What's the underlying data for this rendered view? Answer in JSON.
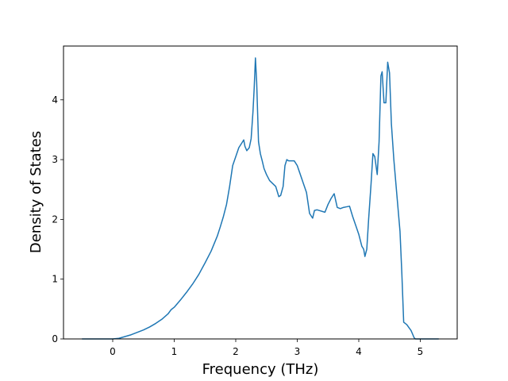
{
  "chart_data": {
    "type": "line",
    "xlabel": "Frequency (THz)",
    "ylabel": "Density of States",
    "xlim": [
      -0.8,
      5.6
    ],
    "ylim": [
      0,
      4.9
    ],
    "xticks": [
      0,
      1,
      2,
      3,
      4,
      5
    ],
    "yticks": [
      0,
      1,
      2,
      3,
      4
    ],
    "grid": false,
    "colors": {
      "line": "#1f77b4"
    },
    "series": [
      {
        "points": [
          [
            -0.5,
            0
          ],
          [
            0.0,
            0
          ],
          [
            0.1,
            0.01
          ],
          [
            0.2,
            0.04
          ],
          [
            0.3,
            0.07
          ],
          [
            0.4,
            0.11
          ],
          [
            0.5,
            0.15
          ],
          [
            0.6,
            0.2
          ],
          [
            0.7,
            0.26
          ],
          [
            0.8,
            0.33
          ],
          [
            0.9,
            0.42
          ],
          [
            0.95,
            0.49
          ],
          [
            1.0,
            0.53
          ],
          [
            1.1,
            0.65
          ],
          [
            1.2,
            0.78
          ],
          [
            1.3,
            0.92
          ],
          [
            1.4,
            1.08
          ],
          [
            1.5,
            1.27
          ],
          [
            1.6,
            1.47
          ],
          [
            1.7,
            1.72
          ],
          [
            1.75,
            1.88
          ],
          [
            1.8,
            2.05
          ],
          [
            1.85,
            2.25
          ],
          [
            1.9,
            2.55
          ],
          [
            1.95,
            2.9
          ],
          [
            2.0,
            3.05
          ],
          [
            2.05,
            3.2
          ],
          [
            2.1,
            3.28
          ],
          [
            2.13,
            3.33
          ],
          [
            2.15,
            3.22
          ],
          [
            2.18,
            3.15
          ],
          [
            2.22,
            3.2
          ],
          [
            2.25,
            3.35
          ],
          [
            2.28,
            3.8
          ],
          [
            2.3,
            4.2
          ],
          [
            2.32,
            4.7
          ],
          [
            2.34,
            4.3
          ],
          [
            2.37,
            3.3
          ],
          [
            2.4,
            3.1
          ],
          [
            2.43,
            2.98
          ],
          [
            2.46,
            2.85
          ],
          [
            2.5,
            2.75
          ],
          [
            2.55,
            2.65
          ],
          [
            2.6,
            2.6
          ],
          [
            2.65,
            2.55
          ],
          [
            2.7,
            2.38
          ],
          [
            2.73,
            2.4
          ],
          [
            2.77,
            2.55
          ],
          [
            2.8,
            2.9
          ],
          [
            2.83,
            3.0
          ],
          [
            2.86,
            2.98
          ],
          [
            2.95,
            2.98
          ],
          [
            3.0,
            2.9
          ],
          [
            3.1,
            2.6
          ],
          [
            3.15,
            2.45
          ],
          [
            3.2,
            2.1
          ],
          [
            3.25,
            2.02
          ],
          [
            3.28,
            2.15
          ],
          [
            3.32,
            2.16
          ],
          [
            3.45,
            2.12
          ],
          [
            3.5,
            2.25
          ],
          [
            3.55,
            2.35
          ],
          [
            3.6,
            2.43
          ],
          [
            3.65,
            2.2
          ],
          [
            3.7,
            2.18
          ],
          [
            3.75,
            2.2
          ],
          [
            3.8,
            2.21
          ],
          [
            3.85,
            2.22
          ],
          [
            3.9,
            2.05
          ],
          [
            3.95,
            1.9
          ],
          [
            4.0,
            1.75
          ],
          [
            4.05,
            1.55
          ],
          [
            4.08,
            1.5
          ],
          [
            4.1,
            1.38
          ],
          [
            4.13,
            1.5
          ],
          [
            4.16,
            2.0
          ],
          [
            4.2,
            2.6
          ],
          [
            4.23,
            3.1
          ],
          [
            4.26,
            3.05
          ],
          [
            4.3,
            2.75
          ],
          [
            4.33,
            3.3
          ],
          [
            4.36,
            4.4
          ],
          [
            4.38,
            4.47
          ],
          [
            4.41,
            3.95
          ],
          [
            4.44,
            3.95
          ],
          [
            4.47,
            4.63
          ],
          [
            4.5,
            4.45
          ],
          [
            4.53,
            3.6
          ],
          [
            4.57,
            3.0
          ],
          [
            4.62,
            2.4
          ],
          [
            4.67,
            1.8
          ],
          [
            4.7,
            1.1
          ],
          [
            4.73,
            0.28
          ],
          [
            4.78,
            0.24
          ],
          [
            4.85,
            0.14
          ],
          [
            4.9,
            0.02
          ],
          [
            4.92,
            0
          ],
          [
            5.3,
            0
          ]
        ]
      }
    ]
  }
}
